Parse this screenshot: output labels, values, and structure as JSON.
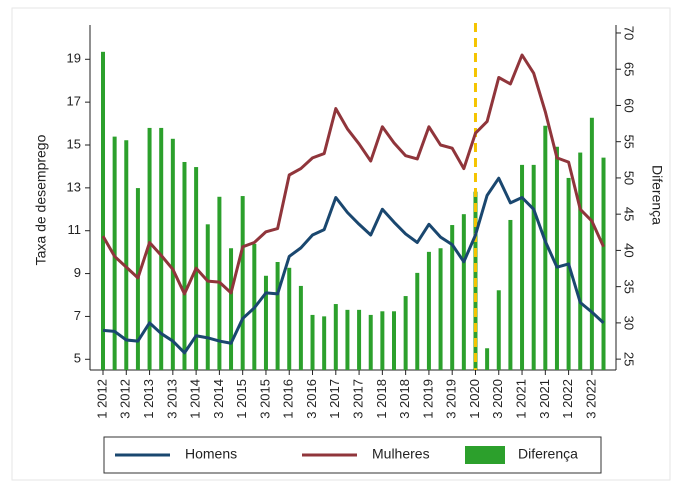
{
  "chart_data": {
    "type": "bar-line",
    "categories": [
      "1 2012",
      null,
      "3 2012",
      null,
      "1 2013",
      null,
      "3 2013",
      null,
      "1 2014",
      null,
      "3 2014",
      null,
      "1 2015",
      null,
      "3 2015",
      null,
      "1 2016",
      null,
      "3 2016",
      null,
      "1 2017",
      null,
      "3 2017",
      null,
      "1 2018",
      null,
      "3 2018",
      null,
      "1 2019",
      null,
      "3 2019",
      null,
      "1 2020",
      null,
      "3 2020",
      null,
      "1 2021",
      null,
      "3 2021",
      null,
      "1 2022",
      null,
      "3 2022",
      null
    ],
    "y_label": "Taxa de desemprego",
    "y2_label": "Diferença",
    "ylim": [
      4.5,
      20.6
    ],
    "yticks": [
      5,
      7,
      9,
      11,
      13,
      15,
      17,
      19
    ],
    "y2lim": [
      23.5,
      71.1
    ],
    "y2ticks": [
      25,
      30,
      35,
      40,
      45,
      50,
      55,
      60,
      65,
      70
    ],
    "reference_line": {
      "category_index": 32,
      "color": "#f5c400"
    },
    "series": [
      {
        "name": "Homens",
        "type": "line",
        "color": "#1a476f",
        "values": [
          6.35,
          6.3,
          5.9,
          5.85,
          6.7,
          6.2,
          5.85,
          5.3,
          6.1,
          6.0,
          5.85,
          5.75,
          6.9,
          7.4,
          8.1,
          8.05,
          9.8,
          10.2,
          10.8,
          11.05,
          12.55,
          11.85,
          11.3,
          10.8,
          12.0,
          11.4,
          10.85,
          10.45,
          11.3,
          10.7,
          10.35,
          9.55,
          10.8,
          12.65,
          13.45,
          12.3,
          12.55,
          12.0,
          10.5,
          9.3,
          9.45,
          7.65,
          7.2,
          6.7
        ]
      },
      {
        "name": "Mulheres",
        "type": "line",
        "color": "#90353b",
        "values": [
          10.75,
          9.8,
          9.3,
          8.8,
          10.45,
          9.85,
          9.2,
          8.05,
          9.25,
          8.65,
          8.6,
          8.1,
          10.25,
          10.45,
          10.95,
          11.1,
          13.6,
          13.9,
          14.4,
          14.6,
          16.7,
          15.75,
          15.05,
          14.25,
          15.85,
          15.1,
          14.5,
          14.35,
          15.85,
          15.0,
          14.85,
          13.9,
          15.55,
          16.1,
          18.15,
          17.85,
          19.2,
          18.35,
          16.55,
          14.4,
          14.2,
          12.0,
          11.45,
          10.25
        ]
      },
      {
        "name": "Diferença",
        "type": "bar",
        "axis": "y2",
        "color": "#2ca02c",
        "values": [
          67.4,
          55.7,
          55.2,
          48.6,
          56.9,
          56.9,
          55.4,
          52.2,
          51.5,
          43.6,
          47.4,
          40.3,
          47.5,
          40.9,
          36.5,
          38.4,
          37.6,
          35.1,
          31.1,
          30.9,
          32.6,
          31.8,
          31.8,
          31.1,
          31.6,
          31.6,
          33.7,
          36.9,
          39.8,
          40.3,
          43.5,
          45.0,
          48.1,
          26.5,
          34.5,
          44.2,
          51.8,
          51.8,
          57.2,
          54.3,
          50.0,
          53.5,
          58.3,
          52.8
        ]
      }
    ]
  }
}
